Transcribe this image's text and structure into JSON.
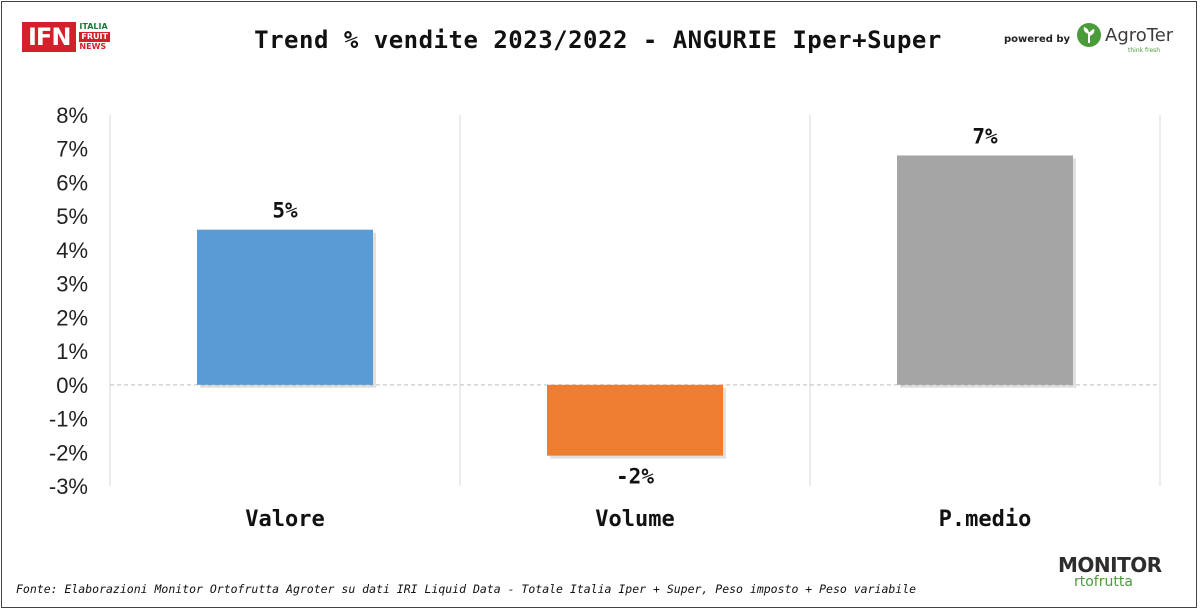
{
  "header": {
    "title": "Trend % vendite 2023/2022 - ANGURIE Iper+Super",
    "logo_left": {
      "main": "IFN",
      "line1": "ITALIA",
      "line2": "FRUIT",
      "line3": "NEWS"
    },
    "powered_by": "powered by",
    "logo_right": {
      "name": "AgroTer",
      "tagline": "think fresh"
    }
  },
  "footer": {
    "source": "Fonte: Elaborazioni Monitor Ortofrutta Agroter su dati IRI Liquid Data - Totale Italia Iper + Super, Peso imposto + Peso variabile",
    "logo": {
      "top": "MONITOR",
      "bottom": "rtofrutta"
    }
  },
  "colors": {
    "valore": "#5b9bd5",
    "volume": "#ed7d31",
    "pmedio": "#a5a5a5"
  },
  "chart_data": {
    "type": "bar",
    "title": "Trend % vendite 2023/2022 - ANGURIE Iper+Super",
    "categories": [
      "Valore",
      "Volume",
      "P.medio"
    ],
    "values": [
      4.6,
      -2.1,
      6.8
    ],
    "data_labels": [
      "5%",
      "-2%",
      "7%"
    ],
    "yticks": [
      "8%",
      "7%",
      "6%",
      "5%",
      "4%",
      "3%",
      "2%",
      "1%",
      "0%",
      "-1%",
      "-2%",
      "-3%"
    ],
    "ylim": [
      -3,
      8
    ],
    "xlabel": "",
    "ylabel": "",
    "grid": "vertical",
    "legend": "none"
  }
}
